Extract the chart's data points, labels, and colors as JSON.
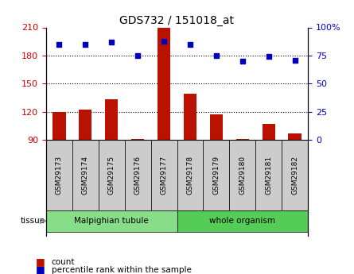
{
  "title": "GDS732 / 151018_at",
  "samples": [
    "GSM29173",
    "GSM29174",
    "GSM29175",
    "GSM29176",
    "GSM29177",
    "GSM29178",
    "GSM29179",
    "GSM29180",
    "GSM29181",
    "GSM29182"
  ],
  "counts": [
    120,
    122,
    133,
    91,
    210,
    139,
    117,
    91,
    107,
    97
  ],
  "percentiles": [
    85,
    85,
    87,
    75,
    88,
    85,
    75,
    70,
    74,
    71
  ],
  "tissue_groups": [
    {
      "label": "Malpighian tubule",
      "start": 0,
      "end": 5,
      "color": "#88dd88"
    },
    {
      "label": "whole organism",
      "start": 5,
      "end": 10,
      "color": "#55cc55"
    }
  ],
  "tissue_label": "tissue",
  "ylim_left": [
    90,
    210
  ],
  "ylim_right": [
    0,
    100
  ],
  "yticks_left": [
    90,
    120,
    150,
    180,
    210
  ],
  "yticks_right": [
    0,
    25,
    50,
    75,
    100
  ],
  "hlines": [
    120,
    150,
    180
  ],
  "bar_color": "#bb1100",
  "dot_color": "#0000bb",
  "bar_baseline": 90,
  "sample_box_color": "#cccccc",
  "left_axis_color": "#cc0000",
  "right_axis_color": "#0000cc"
}
